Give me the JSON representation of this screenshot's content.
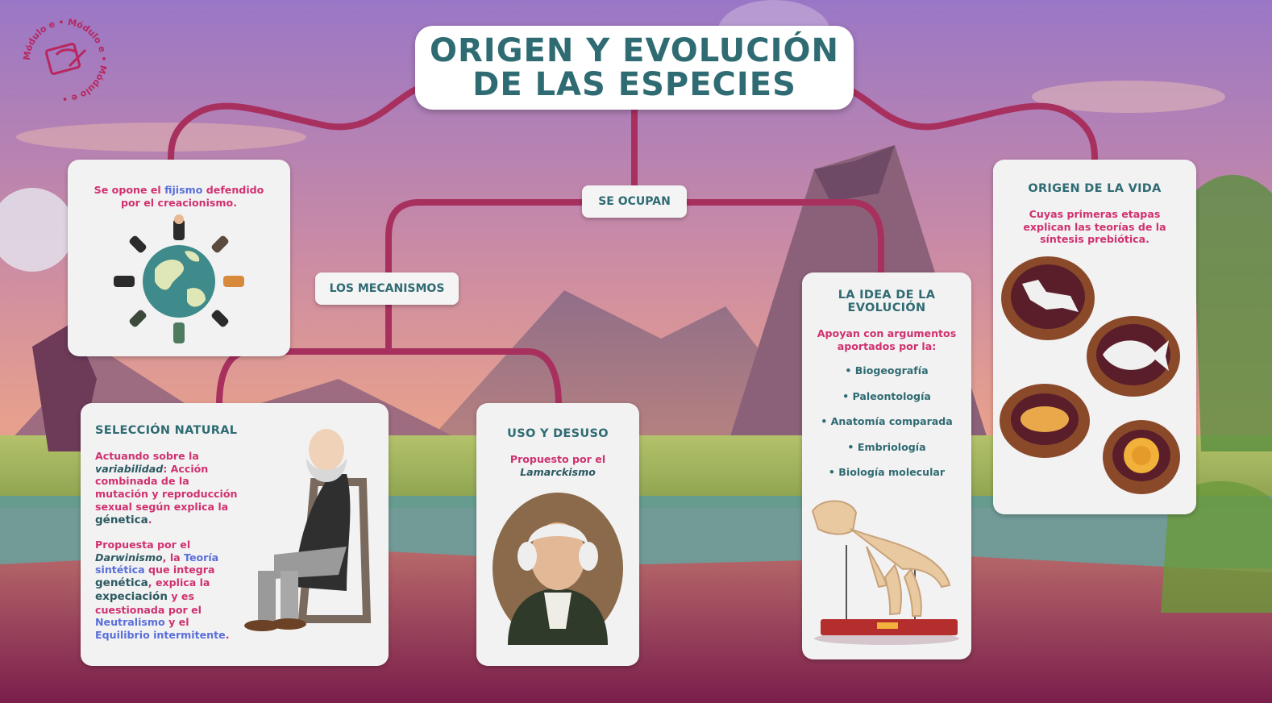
{
  "logo": {
    "ring_text": "Módulo e • Módulo e • Módulo e •"
  },
  "title": {
    "line1": "ORIGEN Y EVOLUCIÓN",
    "line2": "DE LAS ESPECIES"
  },
  "connectors": {
    "se_ocupan": "SE OCUPAN",
    "los_mecanismos": "LOS MECANISMOS"
  },
  "fijismo_card": {
    "text_pre": "Se opone el ",
    "text_link": "fijismo",
    "text_post": " defendido",
    "text_line2": "por el creacionismo."
  },
  "seleccion_natural": {
    "heading": "SELECCIÓN NATURAL",
    "p1_a": "Actuando sobre la",
    "p1_b": "variabilidad",
    "p1_c": ": Acción",
    "p1_d": "combinada de la",
    "p1_e": "mutación y reproducción",
    "p1_f": "sexual según explica la",
    "p1_g": "génetica",
    "p1_h": ".",
    "p2_a": "Propuesta por el",
    "p2_b": "Darwinismo",
    "p2_c": ", la ",
    "p2_d": "Teoría",
    "p2_e": "sintética",
    "p2_f": " que integra",
    "p2_g": "genética",
    "p2_h": ", explica la",
    "p2_i": "expeciación",
    "p2_j": " y es",
    "p2_k": "cuestionada por el",
    "p2_l": "Neutralismo",
    "p2_m": " y el",
    "p2_n": "Equilibrio intermitente",
    "p2_o": "."
  },
  "uso_desuso": {
    "heading": "USO Y DESUSO",
    "line1": "Propuesto por el",
    "line2": "Lamarckismo"
  },
  "idea_evolucion": {
    "heading_line1": "LA IDEA DE LA",
    "heading_line2": "EVOLUCIÓN",
    "intro_line1": "Apoyan con argumentos",
    "intro_line2": "aportados por la:",
    "items": [
      "• Biogeografía",
      "• Paleontología",
      "• Anatomía comparada",
      "• Embriología",
      "• Biología molecular"
    ]
  },
  "origen_vida": {
    "heading": "ORIGEN DE LA VIDA",
    "line1": "Cuyas primeras etapas",
    "line2": "explican las teorías de la",
    "line3": "síntesis prebiótica."
  },
  "colors": {
    "teal": "#2f6b72",
    "pink": "#d0316f",
    "blue": "#5a6fd8",
    "connector": "#a8305f"
  },
  "icons": [
    "module-logo-icon",
    "globe-people-icon",
    "darwin-portrait-icon",
    "lamarck-portrait-icon",
    "dinosaur-skeleton-icon",
    "fossil-dino-icon",
    "fossil-fish-icon",
    "fossil-trilobite-icon",
    "fossil-ammonite-icon"
  ]
}
